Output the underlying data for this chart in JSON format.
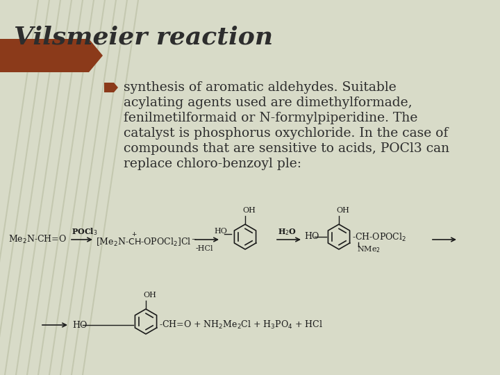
{
  "title": "Vilsmeier reaction",
  "title_fontsize": 26,
  "title_color": "#2d2d2d",
  "bg_color": "#d8dbc8",
  "text_color": "#2d2d2d",
  "bullet_color": "#8b3a1a",
  "header_bar_color": "#8b3a1a",
  "diagonal_lines_color": "#c0c4aa",
  "bullet_text_line1": "synthesis of aromatic aldehydes. Suitable",
  "bullet_text_line2": "acylating agents used are dimethylformade,",
  "bullet_text_line3": "fenilmetilformaid or N-formylpiperidine. The",
  "bullet_text_line4": "catalyst is phosphorus oxychloride. In the case of",
  "bullet_text_line5": "compounds that are sensitive to acids, POCl3 can",
  "bullet_text_line6": "replace chloro-benzoyl ple:",
  "bullet_fontsize": 13.5,
  "chem_fontsize": 9.0,
  "chem_fontsize_small": 8.0
}
